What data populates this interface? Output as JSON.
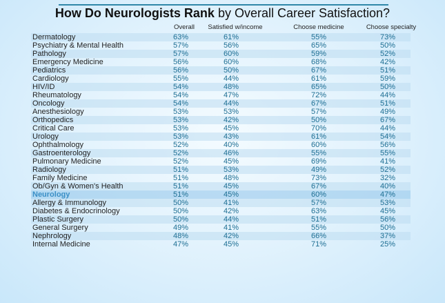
{
  "chart_data": {
    "type": "table",
    "title_bold": "How Do Neurologists Rank",
    "title_rest": " by Overall Career Satisfaction?",
    "columns": [
      "Overall",
      "Satisfied w/income",
      "Choose medicine",
      "Choose specialty"
    ],
    "highlight": "Neurology",
    "highlight_color": "#3a8fc6",
    "value_color": "#1d6e93",
    "rows": [
      [
        "Dermatology",
        "63%",
        "61%",
        "55%",
        "73%"
      ],
      [
        "Psychiatry & Mental Health",
        "57%",
        "56%",
        "65%",
        "50%"
      ],
      [
        "Pathology",
        "57%",
        "60%",
        "59%",
        "52%"
      ],
      [
        "Emergency Medicine",
        "56%",
        "60%",
        "68%",
        "42%"
      ],
      [
        "Pediatrics",
        "56%",
        "50%",
        "67%",
        "51%"
      ],
      [
        "Cardiology",
        "55%",
        "44%",
        "61%",
        "59%"
      ],
      [
        "HIV/ID",
        "54%",
        "48%",
        "65%",
        "50%"
      ],
      [
        "Rheumatology",
        "54%",
        "47%",
        "72%",
        "44%"
      ],
      [
        "Oncology",
        "54%",
        "44%",
        "67%",
        "51%"
      ],
      [
        "Anesthesiology",
        "53%",
        "53%",
        "57%",
        "49%"
      ],
      [
        "Orthopedics",
        "53%",
        "42%",
        "50%",
        "67%"
      ],
      [
        "Critical Care",
        "53%",
        "45%",
        "70%",
        "44%"
      ],
      [
        "Urology",
        "53%",
        "43%",
        "61%",
        "54%"
      ],
      [
        "Ophthalmology",
        "52%",
        "40%",
        "60%",
        "56%"
      ],
      [
        "Gastroenterology",
        "52%",
        "46%",
        "55%",
        "55%"
      ],
      [
        "Pulmonary Medicine",
        "52%",
        "45%",
        "69%",
        "41%"
      ],
      [
        "Radiology",
        "51%",
        "53%",
        "49%",
        "52%"
      ],
      [
        "Family Medicine",
        "51%",
        "48%",
        "73%",
        "32%"
      ],
      [
        "Ob/Gyn & Women's Health",
        "51%",
        "45%",
        "67%",
        "40%"
      ],
      [
        "Neurology",
        "51%",
        "45%",
        "60%",
        "47%"
      ],
      [
        "Allergy & Immunology",
        "50%",
        "41%",
        "57%",
        "53%"
      ],
      [
        "Diabetes & Endocrinology",
        "50%",
        "42%",
        "63%",
        "45%"
      ],
      [
        "Plastic Surgery",
        "50%",
        "44%",
        "51%",
        "56%"
      ],
      [
        "General Surgery",
        "49%",
        "41%",
        "55%",
        "50%"
      ],
      [
        "Nephrology",
        "48%",
        "42%",
        "66%",
        "37%"
      ],
      [
        "Internal Medicine",
        "47%",
        "45%",
        "71%",
        "25%"
      ]
    ]
  }
}
